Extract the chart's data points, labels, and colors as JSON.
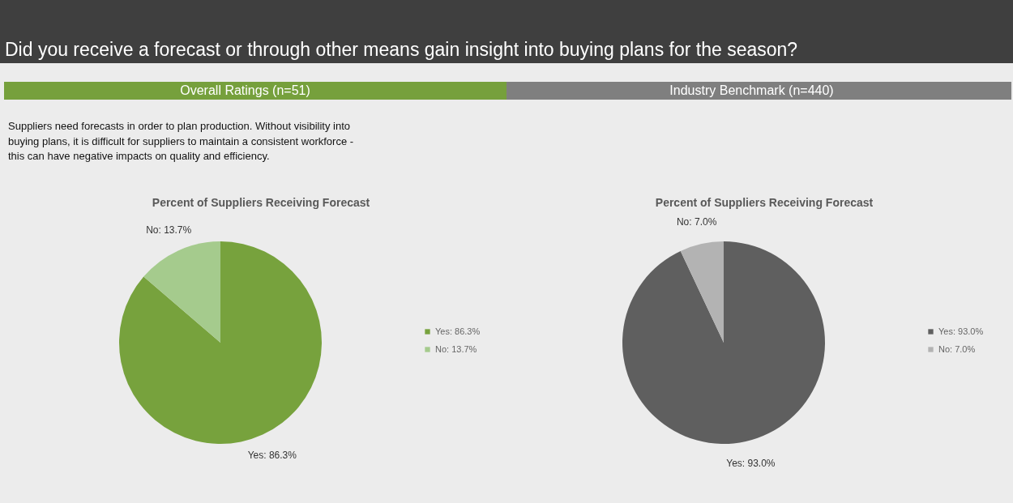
{
  "chart_data": [
    {
      "type": "pie",
      "title": "Percent of Suppliers Receiving Forecast",
      "subtitle": "Overall Ratings (n=51)",
      "annotations": [
        "Did you receive a forecast or through other means gain insight into buying plans for the season?",
        "Suppliers need forecasts in order to plan production. Without visibility into",
        "buying plans, it is difficult for suppliers to maintain a consistent workforce -",
        "this can have negative impacts on quality and efficiency."
      ],
      "categories": [
        "Yes: 86.3%",
        "No: 13.7%"
      ],
      "values": [
        86.3,
        13.7
      ],
      "colors": [
        "#77a23d",
        "#a5cb8d"
      ],
      "legend": "right"
    },
    {
      "type": "pie",
      "title": "Percent of Suppliers Receiving Forecast",
      "subtitle": "Industry Benchmark (n=440)",
      "categories": [
        "Yes: 93.0%",
        "No: 7.0%"
      ],
      "values": [
        93.0,
        7.0
      ],
      "colors": [
        "#5f5f5f",
        "#b3b3b3"
      ],
      "legend": "right"
    }
  ]
}
